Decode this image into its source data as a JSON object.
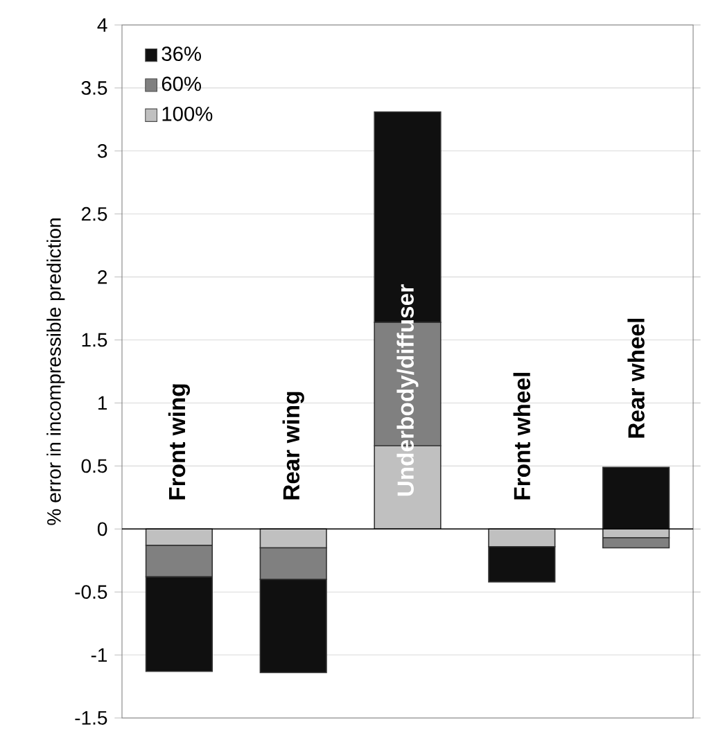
{
  "chart_data": {
    "type": "bar",
    "stacked": true,
    "ylabel": "% error in incompressible prediction",
    "categories": [
      "Front wing",
      "Rear wing",
      "Underbody/diffuser",
      "Front wheel",
      "Rear wheel"
    ],
    "series": [
      {
        "name": "100%",
        "color": "#c0c0c0",
        "values": [
          -0.13,
          -0.15,
          0.66,
          -0.14,
          -0.07
        ]
      },
      {
        "name": "60%",
        "color": "#808080",
        "values": [
          -0.25,
          -0.25,
          0.98,
          0,
          -0.08
        ]
      },
      {
        "name": "36%",
        "color": "#101010",
        "values": [
          -0.75,
          -0.74,
          1.67,
          -0.28,
          0.49
        ]
      }
    ],
    "ylim": [
      -1.5,
      4
    ],
    "yticks": [
      -1.5,
      -1,
      -0.5,
      0,
      0.5,
      1,
      1.5,
      2,
      2.5,
      3,
      3.5,
      4
    ],
    "grid": "y",
    "legend": "top left"
  }
}
